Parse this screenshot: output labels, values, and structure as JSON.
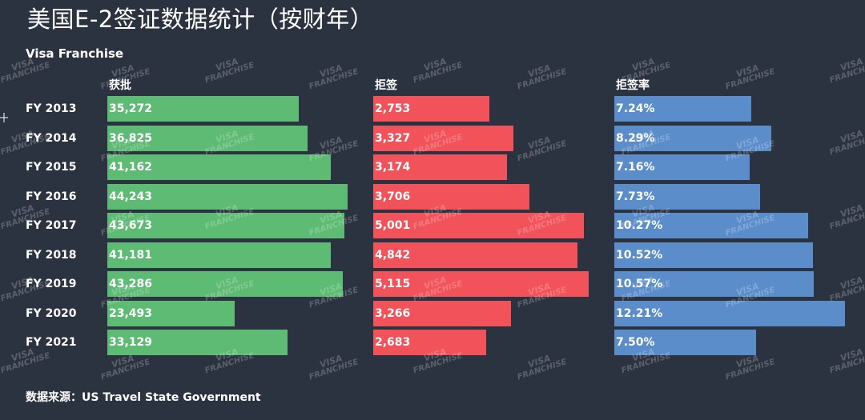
{
  "title": "美国E-2签证数据统计（按财年）",
  "brand": "Visa Franchise",
  "source": "数据来源：US Travel State Government",
  "watermark": {
    "line1": "VISA",
    "line2": "FRANCHISE"
  },
  "chart_data": {
    "type": "bar",
    "orientation": "horizontal",
    "categories": [
      "FY 2013",
      "FY 2014",
      "FY 2015",
      "FY 2016",
      "FY 2017",
      "FY 2018",
      "FY 2019",
      "FY 2020",
      "FY 2021"
    ],
    "series": [
      {
        "name": "获批",
        "color": "#5dbb74",
        "values": [
          35272,
          36825,
          41162,
          44243,
          43673,
          41181,
          43286,
          23493,
          33129
        ],
        "labels": [
          "35,272",
          "36,825",
          "41,162",
          "44,243",
          "43,673",
          "41,181",
          "43,286",
          "23,493",
          "33,129"
        ]
      },
      {
        "name": "拒签",
        "color": "#f2525a",
        "values": [
          2753,
          3327,
          3174,
          3706,
          5001,
          4842,
          5115,
          3266,
          2683
        ],
        "labels": [
          "2,753",
          "3,327",
          "3,174",
          "3,706",
          "5,001",
          "4,842",
          "5,115",
          "3,266",
          "2,683"
        ]
      },
      {
        "name": "拒签率",
        "color": "#5b8dcb",
        "values": [
          7.24,
          8.29,
          7.16,
          7.73,
          10.27,
          10.52,
          10.57,
          12.21,
          7.5
        ],
        "labels": [
          "7.24%",
          "8.29%",
          "7.16%",
          "7.73%",
          "10.27%",
          "10.52%",
          "10.57%",
          "12.21%",
          "7.50%"
        ]
      }
    ]
  }
}
